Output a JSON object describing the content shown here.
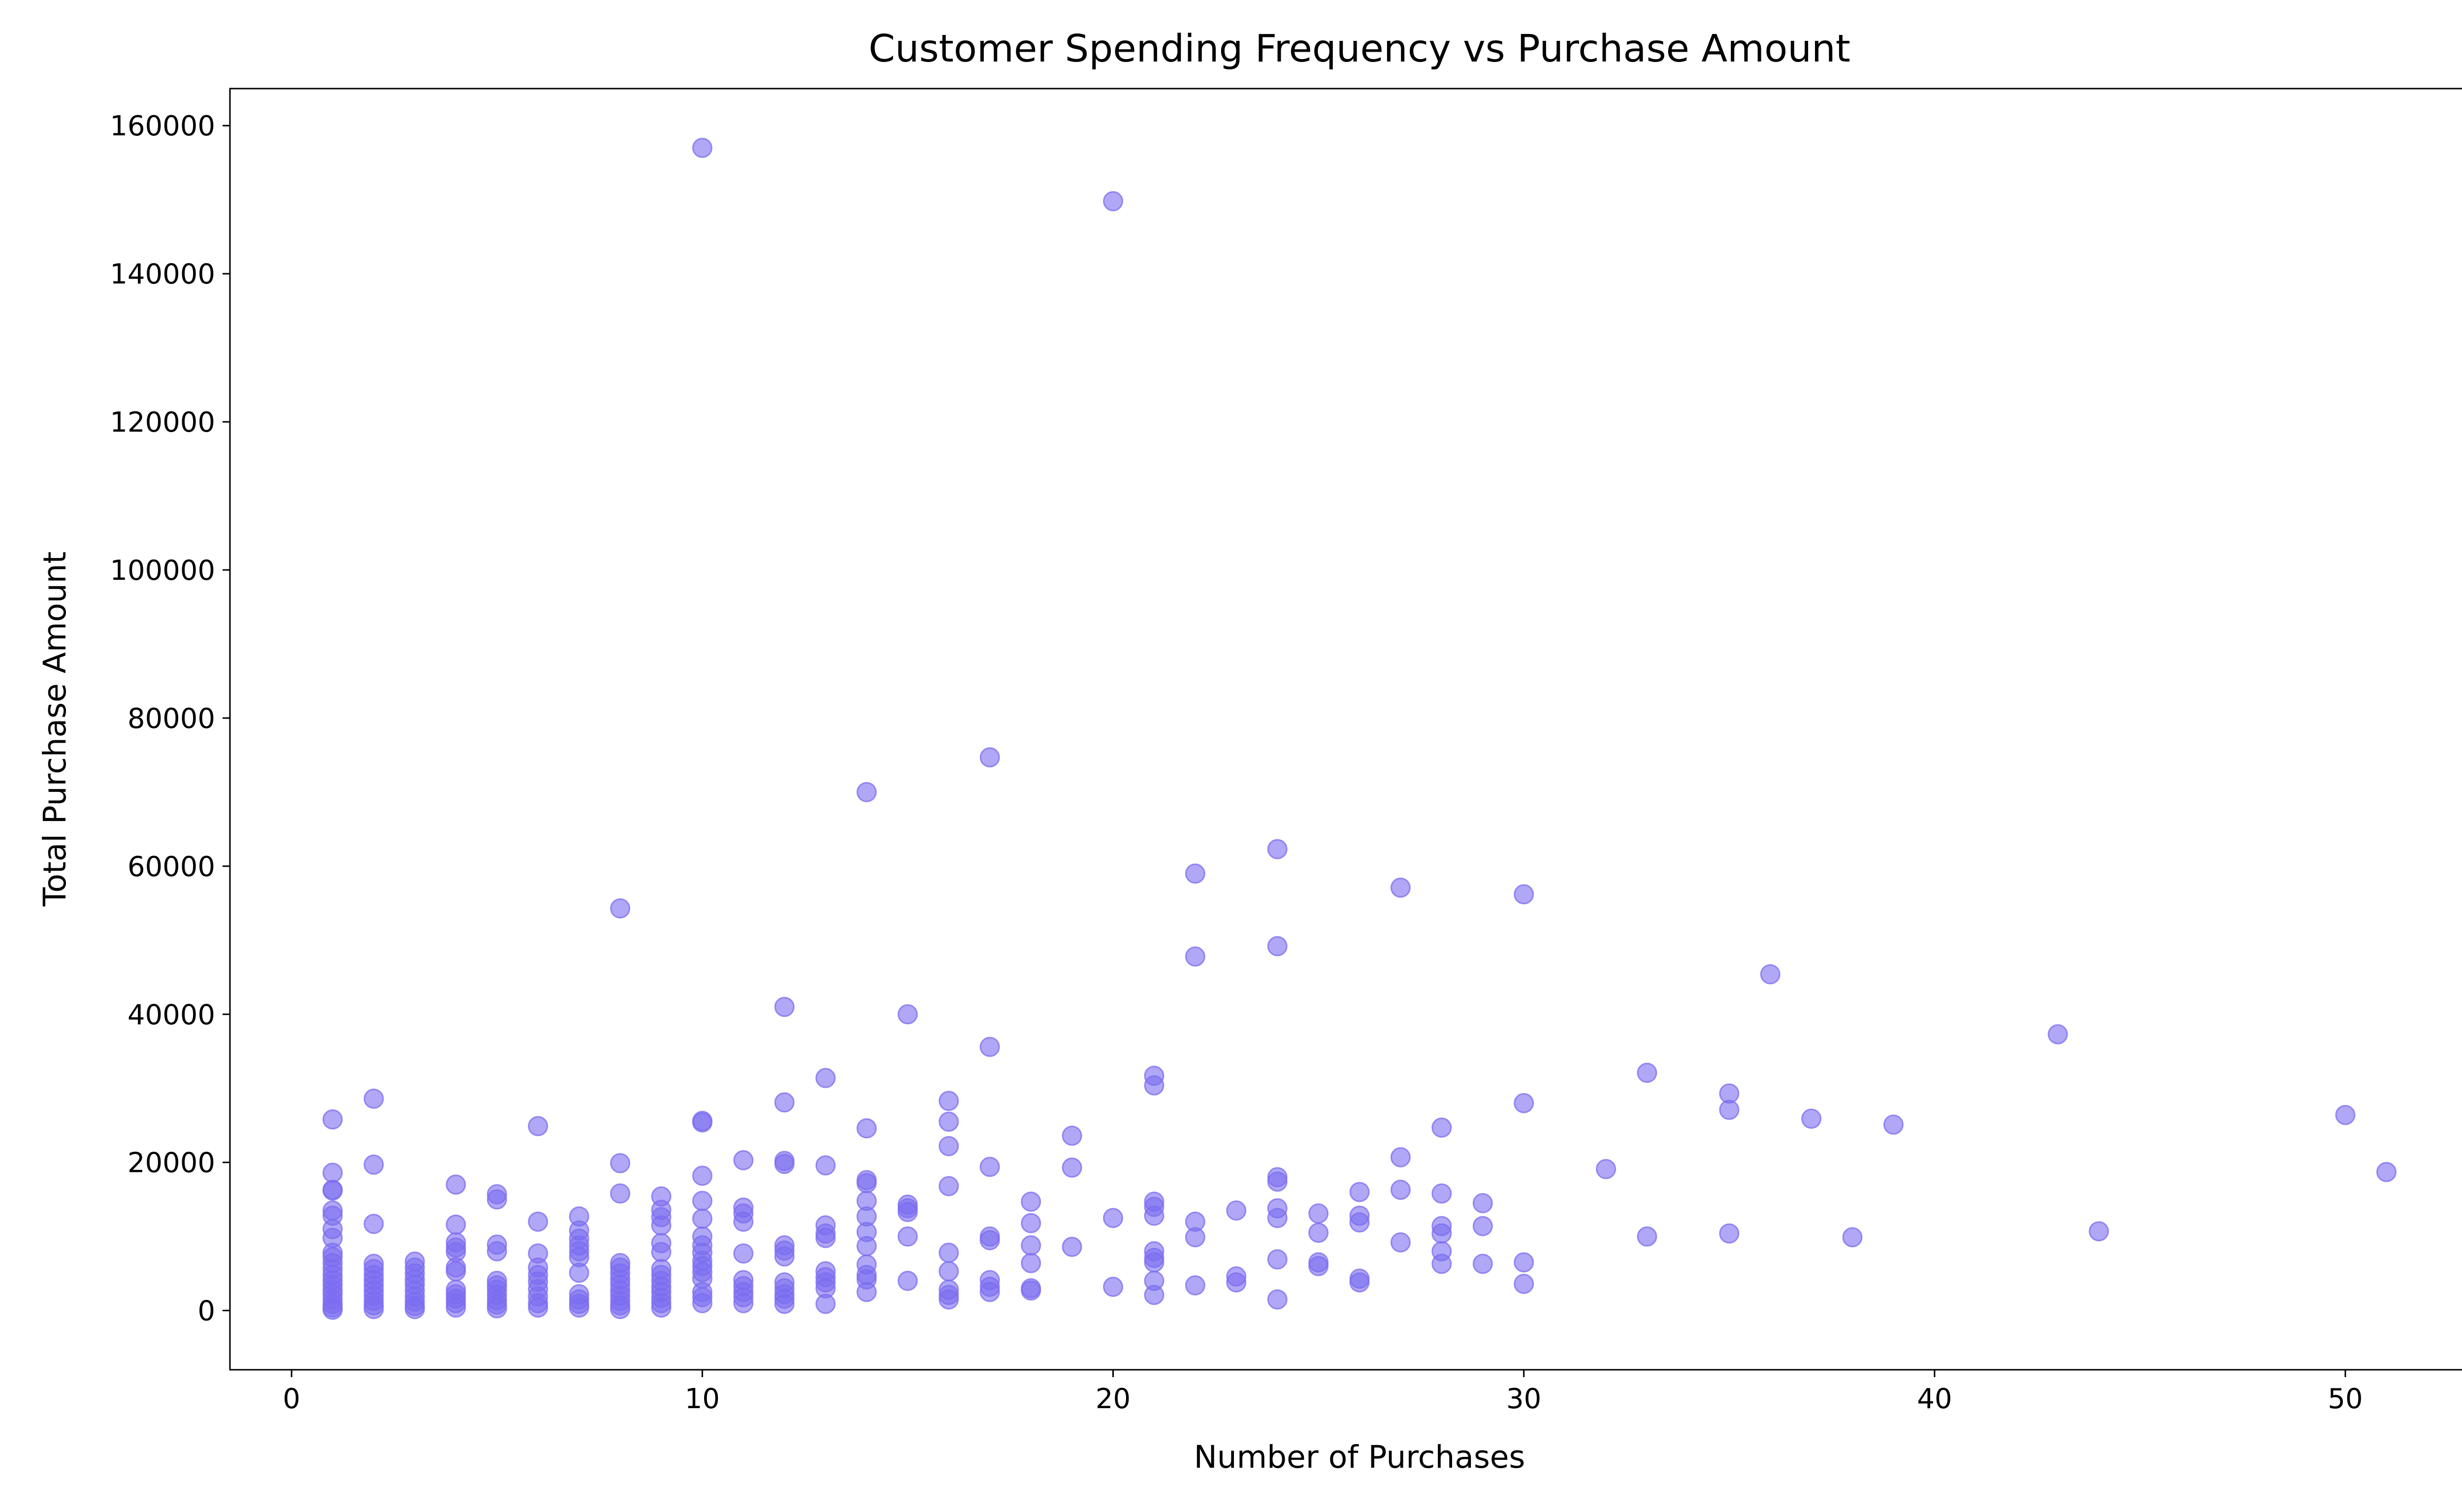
{
  "chart_data": {
    "type": "scatter",
    "title": "Customer Spending Frequency vs Purchase Amount",
    "xlabel": "Number of Purchases",
    "ylabel": "Total Purchase Amount",
    "xlim": [
      -1.5,
      53.5
    ],
    "ylim": [
      -8000,
      165000
    ],
    "x_ticks": [
      0,
      10,
      20,
      30,
      40,
      50
    ],
    "y_ticks": [
      0,
      20000,
      40000,
      60000,
      80000,
      100000,
      120000,
      140000,
      160000
    ],
    "grid": false,
    "legend": "none",
    "marker_color": "#7b6cf0",
    "marker_opacity": 0.6,
    "points": [
      [
        1,
        25800
      ],
      [
        1,
        18600
      ],
      [
        1,
        16300
      ],
      [
        1,
        16200
      ],
      [
        1,
        13500
      ],
      [
        1,
        12800
      ],
      [
        1,
        11000
      ],
      [
        1,
        9800
      ],
      [
        1,
        7800
      ],
      [
        1,
        7200
      ],
      [
        1,
        6400
      ],
      [
        1,
        5600
      ],
      [
        1,
        4800
      ],
      [
        1,
        4100
      ],
      [
        1,
        3500
      ],
      [
        1,
        2800
      ],
      [
        1,
        2200
      ],
      [
        1,
        1500
      ],
      [
        1,
        900
      ],
      [
        1,
        400
      ],
      [
        1,
        100
      ],
      [
        2,
        28600
      ],
      [
        2,
        19700
      ],
      [
        2,
        11700
      ],
      [
        2,
        6300
      ],
      [
        2,
        5600
      ],
      [
        2,
        4800
      ],
      [
        2,
        4100
      ],
      [
        2,
        3400
      ],
      [
        2,
        2700
      ],
      [
        2,
        2000
      ],
      [
        2,
        1300
      ],
      [
        2,
        700
      ],
      [
        2,
        200
      ],
      [
        3,
        6600
      ],
      [
        3,
        5800
      ],
      [
        3,
        5000
      ],
      [
        3,
        4200
      ],
      [
        3,
        3500
      ],
      [
        3,
        2700
      ],
      [
        3,
        1900
      ],
      [
        3,
        1200
      ],
      [
        3,
        600
      ],
      [
        3,
        200
      ],
      [
        4,
        17000
      ],
      [
        4,
        11600
      ],
      [
        4,
        9200
      ],
      [
        4,
        8500
      ],
      [
        4,
        7900
      ],
      [
        4,
        5800
      ],
      [
        4,
        5300
      ],
      [
        4,
        2800
      ],
      [
        4,
        2200
      ],
      [
        4,
        1600
      ],
      [
        4,
        1000
      ],
      [
        4,
        400
      ],
      [
        5,
        15700
      ],
      [
        5,
        15000
      ],
      [
        5,
        8900
      ],
      [
        5,
        8000
      ],
      [
        5,
        4000
      ],
      [
        5,
        3400
      ],
      [
        5,
        2800
      ],
      [
        5,
        2100
      ],
      [
        5,
        1400
      ],
      [
        5,
        800
      ],
      [
        5,
        300
      ],
      [
        6,
        24900
      ],
      [
        6,
        12000
      ],
      [
        6,
        7700
      ],
      [
        6,
        5800
      ],
      [
        6,
        4800
      ],
      [
        6,
        3900
      ],
      [
        6,
        2900
      ],
      [
        6,
        1900
      ],
      [
        6,
        1000
      ],
      [
        6,
        400
      ],
      [
        7,
        12700
      ],
      [
        7,
        10800
      ],
      [
        7,
        9700
      ],
      [
        7,
        8800
      ],
      [
        7,
        8000
      ],
      [
        7,
        7200
      ],
      [
        7,
        5100
      ],
      [
        7,
        2200
      ],
      [
        7,
        1500
      ],
      [
        7,
        900
      ],
      [
        7,
        400
      ],
      [
        8,
        54300
      ],
      [
        8,
        19900
      ],
      [
        8,
        15800
      ],
      [
        8,
        6400
      ],
      [
        8,
        5800
      ],
      [
        8,
        5000
      ],
      [
        8,
        4200
      ],
      [
        8,
        3500
      ],
      [
        8,
        2700
      ],
      [
        8,
        2000
      ],
      [
        8,
        1300
      ],
      [
        8,
        700
      ],
      [
        8,
        200
      ],
      [
        9,
        15400
      ],
      [
        9,
        13600
      ],
      [
        9,
        12600
      ],
      [
        9,
        11500
      ],
      [
        9,
        9100
      ],
      [
        9,
        7900
      ],
      [
        9,
        5600
      ],
      [
        9,
        4800
      ],
      [
        9,
        4000
      ],
      [
        9,
        3200
      ],
      [
        9,
        2500
      ],
      [
        9,
        1700
      ],
      [
        9,
        1000
      ],
      [
        9,
        400
      ],
      [
        10,
        157000
      ],
      [
        10,
        25600
      ],
      [
        10,
        25400
      ],
      [
        10,
        18200
      ],
      [
        10,
        14800
      ],
      [
        10,
        12400
      ],
      [
        10,
        10000
      ],
      [
        10,
        8800
      ],
      [
        10,
        7800
      ],
      [
        10,
        6700
      ],
      [
        10,
        6000
      ],
      [
        10,
        5200
      ],
      [
        10,
        4300
      ],
      [
        10,
        2500
      ],
      [
        10,
        1800
      ],
      [
        10,
        1000
      ],
      [
        11,
        20300
      ],
      [
        11,
        13900
      ],
      [
        11,
        13100
      ],
      [
        11,
        12000
      ],
      [
        11,
        7700
      ],
      [
        11,
        4100
      ],
      [
        11,
        3300
      ],
      [
        11,
        2500
      ],
      [
        11,
        1800
      ],
      [
        11,
        1000
      ],
      [
        12,
        41000
      ],
      [
        12,
        28100
      ],
      [
        12,
        20200
      ],
      [
        12,
        19800
      ],
      [
        12,
        8800
      ],
      [
        12,
        8100
      ],
      [
        12,
        7300
      ],
      [
        12,
        3800
      ],
      [
        12,
        3000
      ],
      [
        12,
        2200
      ],
      [
        12,
        1600
      ],
      [
        12,
        900
      ],
      [
        13,
        31400
      ],
      [
        13,
        19600
      ],
      [
        13,
        11500
      ],
      [
        13,
        10400
      ],
      [
        13,
        9800
      ],
      [
        13,
        5300
      ],
      [
        13,
        4500
      ],
      [
        13,
        3800
      ],
      [
        13,
        3000
      ],
      [
        13,
        900
      ],
      [
        14,
        70000
      ],
      [
        14,
        24600
      ],
      [
        14,
        17600
      ],
      [
        14,
        17200
      ],
      [
        14,
        14800
      ],
      [
        14,
        12700
      ],
      [
        14,
        10600
      ],
      [
        14,
        8700
      ],
      [
        14,
        6200
      ],
      [
        14,
        4800
      ],
      [
        14,
        4200
      ],
      [
        14,
        2500
      ],
      [
        15,
        40000
      ],
      [
        15,
        14300
      ],
      [
        15,
        13800
      ],
      [
        15,
        13300
      ],
      [
        15,
        10000
      ],
      [
        15,
        4000
      ],
      [
        16,
        28300
      ],
      [
        16,
        25500
      ],
      [
        16,
        22200
      ],
      [
        16,
        16800
      ],
      [
        16,
        7800
      ],
      [
        16,
        5300
      ],
      [
        16,
        2800
      ],
      [
        16,
        2100
      ],
      [
        16,
        1500
      ],
      [
        17,
        74700
      ],
      [
        17,
        35600
      ],
      [
        17,
        19400
      ],
      [
        17,
        10000
      ],
      [
        17,
        9500
      ],
      [
        17,
        4100
      ],
      [
        17,
        3200
      ],
      [
        17,
        2500
      ],
      [
        18,
        14700
      ],
      [
        18,
        11800
      ],
      [
        18,
        8800
      ],
      [
        18,
        6400
      ],
      [
        18,
        3000
      ],
      [
        18,
        2700
      ],
      [
        19,
        23600
      ],
      [
        19,
        19300
      ],
      [
        19,
        8600
      ],
      [
        20,
        149800
      ],
      [
        20,
        12500
      ],
      [
        20,
        3200
      ],
      [
        21,
        31700
      ],
      [
        21,
        30400
      ],
      [
        21,
        14700
      ],
      [
        21,
        14000
      ],
      [
        21,
        12800
      ],
      [
        21,
        8000
      ],
      [
        21,
        7100
      ],
      [
        21,
        6500
      ],
      [
        21,
        4000
      ],
      [
        21,
        2100
      ],
      [
        22,
        59000
      ],
      [
        22,
        47800
      ],
      [
        22,
        12000
      ],
      [
        22,
        9900
      ],
      [
        22,
        3400
      ],
      [
        23,
        13500
      ],
      [
        23,
        4600
      ],
      [
        23,
        3800
      ],
      [
        24,
        62300
      ],
      [
        24,
        49200
      ],
      [
        24,
        18000
      ],
      [
        24,
        17400
      ],
      [
        24,
        13800
      ],
      [
        24,
        12500
      ],
      [
        24,
        6900
      ],
      [
        24,
        1500
      ],
      [
        25,
        13100
      ],
      [
        25,
        10500
      ],
      [
        25,
        6500
      ],
      [
        25,
        6000
      ],
      [
        26,
        16000
      ],
      [
        26,
        12800
      ],
      [
        26,
        11900
      ],
      [
        26,
        4300
      ],
      [
        26,
        3800
      ],
      [
        27,
        57100
      ],
      [
        27,
        20700
      ],
      [
        27,
        16300
      ],
      [
        27,
        9200
      ],
      [
        28,
        24700
      ],
      [
        28,
        15800
      ],
      [
        28,
        11400
      ],
      [
        28,
        10400
      ],
      [
        28,
        8000
      ],
      [
        28,
        6300
      ],
      [
        29,
        14500
      ],
      [
        29,
        11400
      ],
      [
        29,
        6300
      ],
      [
        30,
        56200
      ],
      [
        30,
        28000
      ],
      [
        30,
        6500
      ],
      [
        30,
        3600
      ],
      [
        32,
        19100
      ],
      [
        33,
        32100
      ],
      [
        33,
        10000
      ],
      [
        35,
        29300
      ],
      [
        35,
        27100
      ],
      [
        35,
        10400
      ],
      [
        36,
        45400
      ],
      [
        37,
        25900
      ],
      [
        38,
        9900
      ],
      [
        39,
        25100
      ],
      [
        43,
        37300
      ],
      [
        44,
        10700
      ],
      [
        50,
        26400
      ],
      [
        51,
        18700
      ]
    ]
  }
}
